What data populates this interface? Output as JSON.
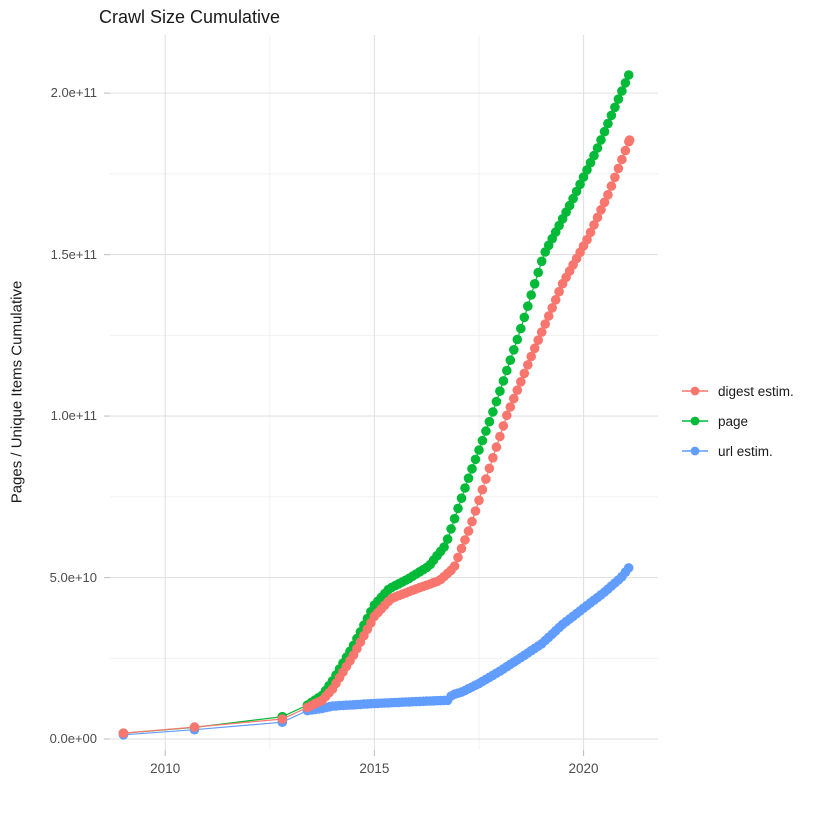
{
  "chart_data": {
    "type": "scatter",
    "title": "Crawl Size Cumulative",
    "ylabel": "Pages / Unique Items Cumulative",
    "xlabel": "",
    "grid": true,
    "legend_position": "right",
    "x_domain": [
      2008.68,
      2021.78
    ],
    "y_domain": [
      -3400000000.0,
      218000000000.0
    ],
    "x_axis": {
      "major": [
        2010,
        2015,
        2020
      ],
      "labels": [
        "2010",
        "2015",
        "2020"
      ],
      "minor": [
        2012.5,
        2017.5
      ]
    },
    "y_axis": {
      "major": [
        0,
        50000000000.0,
        100000000000.0,
        150000000000.0,
        200000000000.0
      ],
      "labels": [
        "0.0e+00",
        "5.0e+10",
        "1.0e+11",
        "1.5e+11",
        "2.0e+11"
      ],
      "minor": [
        25000000000.0,
        75000000000.0,
        125000000000.0,
        175000000000.0
      ]
    },
    "dense_from": 2013.5,
    "interval": 0.0833333,
    "series": [
      {
        "id": "digest-estim",
        "label": "digest estim.",
        "color": "#F8766D",
        "z": 2,
        "anchors": [
          [
            2009.0,
            1800000000.0
          ],
          [
            2010.7,
            3700000000.0
          ],
          [
            2012.8,
            6200000000.0
          ],
          [
            2013.4,
            9800000000.0
          ],
          [
            2013.75,
            12000000000.0
          ],
          [
            2014.0,
            15500000000.0
          ],
          [
            2014.5,
            26000000000.0
          ],
          [
            2015.0,
            38000000000.0
          ],
          [
            2015.4,
            43500000000.0
          ],
          [
            2016.0,
            46500000000.0
          ],
          [
            2016.55,
            49000000000.0
          ],
          [
            2016.9,
            53000000000.0
          ],
          [
            2017.3,
            66000000000.0
          ],
          [
            2017.73,
            83000000000.0
          ],
          [
            2018.16,
            100000000000.0
          ],
          [
            2018.8,
            120000000000.0
          ],
          [
            2019.5,
            141000000000.0
          ],
          [
            2020.1,
            155000000000.0
          ],
          [
            2020.6,
            169000000000.0
          ],
          [
            2021.1,
            185500000000.0
          ]
        ]
      },
      {
        "id": "page",
        "label": "page",
        "color": "#00BA38",
        "z": 0,
        "anchors": [
          [
            2009.0,
            1800000000.0
          ],
          [
            2010.7,
            3600000000.0
          ],
          [
            2012.8,
            6900000000.0
          ],
          [
            2013.4,
            10500000000.0
          ],
          [
            2013.75,
            13500000000.0
          ],
          [
            2014.0,
            18000000000.0
          ],
          [
            2014.5,
            29000000000.0
          ],
          [
            2015.0,
            41500000000.0
          ],
          [
            2015.35,
            46500000000.0
          ],
          [
            2015.8,
            49500000000.0
          ],
          [
            2016.3,
            53500000000.0
          ],
          [
            2016.7,
            60000000000.0
          ],
          [
            2017.2,
            79000000000.0
          ],
          [
            2017.8,
            100000000000.0
          ],
          [
            2018.45,
            125000000000.0
          ],
          [
            2019.05,
            150000000000.0
          ],
          [
            2019.7,
            166000000000.0
          ],
          [
            2020.3,
            182000000000.0
          ],
          [
            2021.08,
            205600000000.0
          ]
        ]
      },
      {
        "id": "url-estim",
        "label": "url estim.",
        "color": "#619CFF",
        "z": 1,
        "anchors": [
          [
            2009.0,
            1300000000.0
          ],
          [
            2010.7,
            2900000000.0
          ],
          [
            2012.8,
            5200000000.0
          ],
          [
            2013.4,
            8800000000.0
          ],
          [
            2013.75,
            9500000000.0
          ],
          [
            2014.0,
            10200000000.0
          ],
          [
            2015.0,
            11000000000.0
          ],
          [
            2016.0,
            11600000000.0
          ],
          [
            2016.75,
            12000000000.0
          ],
          [
            2016.85,
            13600000000.0
          ],
          [
            2017.1,
            14600000000.0
          ],
          [
            2017.5,
            17200000000.0
          ],
          [
            2018.0,
            21000000000.0
          ],
          [
            2018.5,
            25200000000.0
          ],
          [
            2019.0,
            29500000000.0
          ],
          [
            2019.5,
            35500000000.0
          ],
          [
            2020.0,
            40500000000.0
          ],
          [
            2020.5,
            45500000000.0
          ],
          [
            2020.9,
            50000000000.0
          ],
          [
            2021.08,
            53000000000.0
          ]
        ]
      }
    ]
  }
}
